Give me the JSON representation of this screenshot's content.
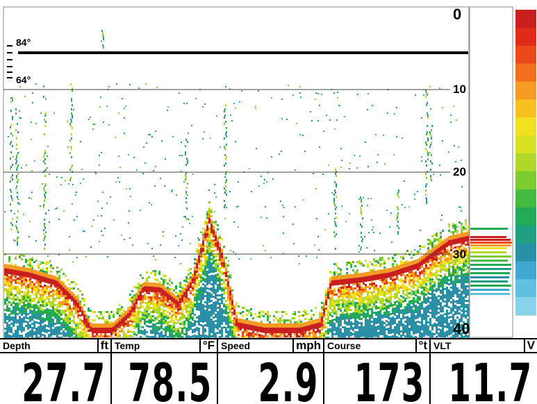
{
  "depth_scale": {
    "labels": [
      "0",
      "10",
      "20",
      "30",
      "40"
    ]
  },
  "temp_scale": {
    "labels": [
      "84°",
      "64°"
    ]
  },
  "readouts": [
    {
      "name": "Depth",
      "unit": "ft",
      "value": "27.7"
    },
    {
      "name": "Temp",
      "unit": "°F",
      "value": "78.5"
    },
    {
      "name": "Speed",
      "unit": "mph",
      "value": "2.9"
    },
    {
      "name": "Course",
      "unit": "°t",
      "value": "173"
    },
    {
      "name": "VLT",
      "unit": "V",
      "value": "11.7"
    }
  ],
  "colors": {
    "grid": "#444444",
    "surface_line": "#000000",
    "palette": [
      "#c81e1e",
      "#e02a1a",
      "#ea4a1a",
      "#f07020",
      "#f59a22",
      "#f5c020",
      "#f0e020",
      "#d8e020",
      "#b0d82a",
      "#7ccc30",
      "#44bb40",
      "#22aa55",
      "#20a080",
      "#2a90a8",
      "#40a8d0",
      "#60c0e0",
      "#88d2ea"
    ]
  }
}
